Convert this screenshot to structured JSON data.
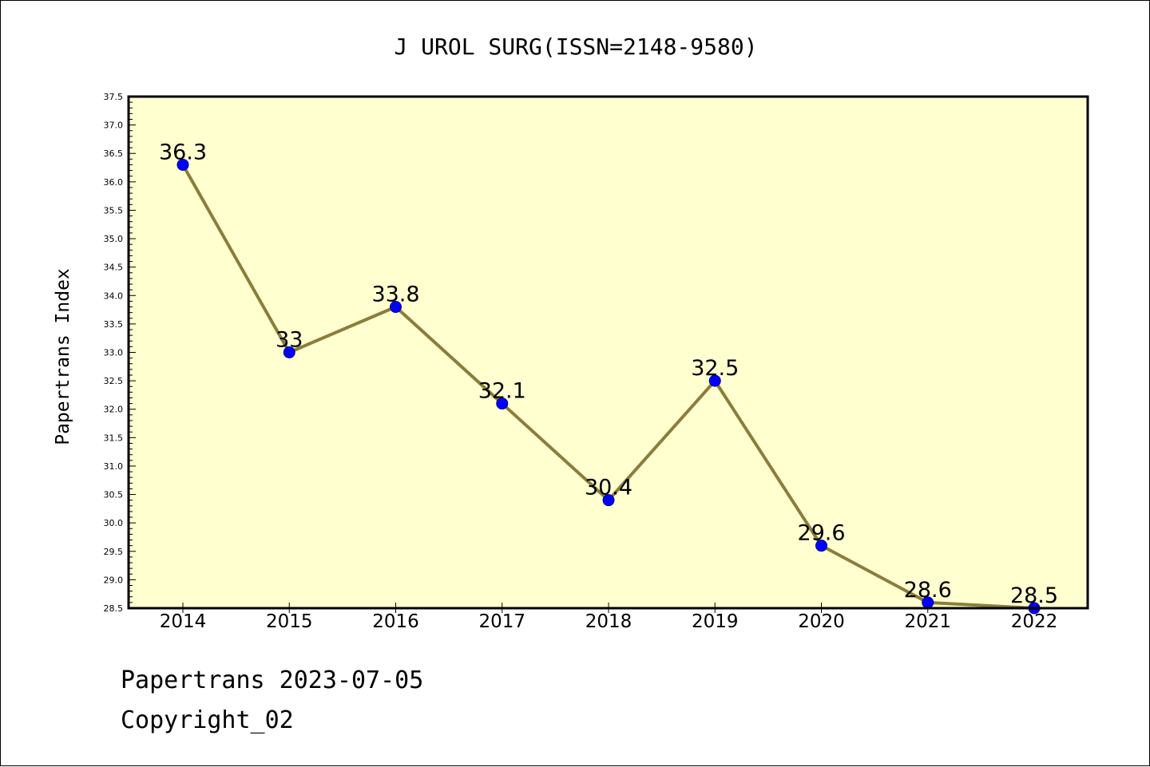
{
  "chart_data": {
    "type": "line",
    "title": "J UROL SURG(ISSN=2148-9580)",
    "ylabel": "Papertrans Index",
    "xlabel": "",
    "categories": [
      "2014",
      "2015",
      "2016",
      "2017",
      "2018",
      "2019",
      "2020",
      "2021",
      "2022"
    ],
    "series": [
      {
        "values": [
          36.3,
          33,
          33.8,
          32.1,
          30.4,
          32.5,
          29.6,
          28.6,
          28.5
        ],
        "data_labels": [
          "36.3",
          "33",
          "33.8",
          "32.1",
          "30.4",
          "32.5",
          "29.6",
          "28.6",
          "28.5"
        ]
      }
    ],
    "ylim": [
      28.5,
      37.5
    ],
    "y_ticks": [
      "28.5",
      "29.0",
      "29.5",
      "30.0",
      "30.5",
      "31.0",
      "31.5",
      "32.0",
      "32.5",
      "33.0",
      "33.5",
      "34.0",
      "34.5",
      "35.0",
      "35.5",
      "36.0",
      "36.5",
      "37.0",
      "37.5"
    ],
    "grid": false,
    "colors": {
      "plot_background": "#ffffd0",
      "line": "#8b7d3a",
      "marker": "#0000ff",
      "marker_edge": "#00008b",
      "axis": "#000000"
    }
  },
  "footer": {
    "date_text": "Papertrans 2023-07-05",
    "copyright_text": "Copyright_02"
  }
}
